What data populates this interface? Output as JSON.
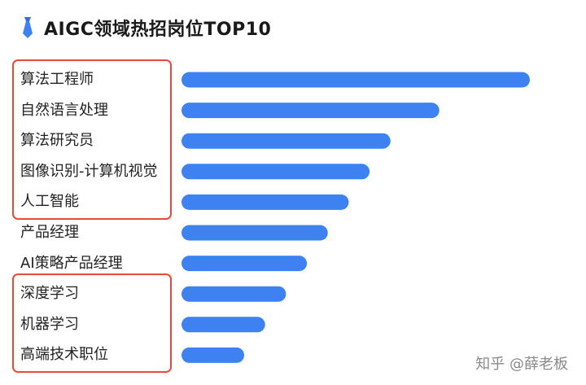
{
  "title": "AIGC领域热招岗位TOP10",
  "watermark": "知乎 @薛老板",
  "colors": {
    "bar": "#3e82f2",
    "highlight_box": "#e84a3c"
  },
  "highlight_groups": [
    {
      "name": "group-1",
      "rows": [
        0,
        4
      ]
    },
    {
      "name": "group-2",
      "rows": [
        7,
        9
      ]
    }
  ],
  "chart_data": {
    "type": "bar",
    "orientation": "horizontal",
    "categories": [
      "算法工程师",
      "自然语言处理",
      "算法研究员",
      "图像识别-计算机视觉",
      "人工智能",
      "产品经理",
      "AI策略产品经理",
      "深度学习",
      "机器学习",
      "高端技术职位"
    ],
    "values": [
      100,
      74,
      60,
      54,
      48,
      42,
      36,
      30,
      24,
      18
    ],
    "xlim": [
      0,
      100
    ],
    "grid": false,
    "legend": "none"
  }
}
